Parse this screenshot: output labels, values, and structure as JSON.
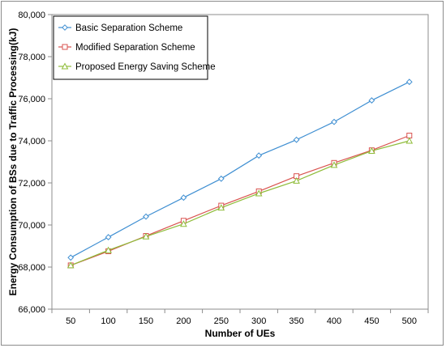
{
  "chart_data": {
    "type": "line",
    "title": "",
    "xlabel": "Number of UEs",
    "ylabel": "Energy Consumption of BSs due to Traffic Processing(kJ)",
    "categories": [
      "50",
      "100",
      "150",
      "200",
      "250",
      "300",
      "350",
      "400",
      "450",
      "500"
    ],
    "ylim": [
      66000,
      80000
    ],
    "yticks": [
      66000,
      68000,
      70000,
      72000,
      74000,
      76000,
      78000,
      80000
    ],
    "ytick_labels": [
      "66,000",
      "68,000",
      "70,000",
      "72,000",
      "74,000",
      "76,000",
      "78,000",
      "80,000"
    ],
    "grid": false,
    "legend_position": "top-left",
    "series": [
      {
        "name": "Basic Separation Scheme",
        "color": "#3f8fd2",
        "marker": "diamond",
        "values": [
          68450,
          69420,
          70400,
          71300,
          72200,
          73300,
          74050,
          74900,
          75920,
          76800
        ]
      },
      {
        "name": "Modified Separation Scheme",
        "color": "#d9534f",
        "marker": "square",
        "values": [
          68080,
          68750,
          69480,
          70200,
          70920,
          71600,
          72320,
          72950,
          73550,
          74250
        ]
      },
      {
        "name": "Proposed Energy Saving Scheme",
        "color": "#8fbc3a",
        "marker": "triangle",
        "values": [
          68080,
          68800,
          69450,
          70050,
          70820,
          71500,
          72100,
          72850,
          73520,
          74000
        ]
      }
    ]
  }
}
